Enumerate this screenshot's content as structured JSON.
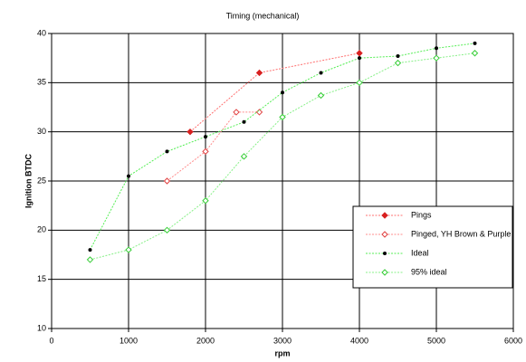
{
  "chart_data": {
    "type": "scatter",
    "title": "Timing (mechanical)",
    "x_label": "rpm",
    "y_label": "Ignition BTDC",
    "xlim": [
      0,
      6000
    ],
    "xticks": [
      0,
      1000,
      2000,
      3000,
      4000,
      5000,
      6000
    ],
    "ylim": [
      10,
      40
    ],
    "yticks": [
      10,
      15,
      20,
      25,
      30,
      35,
      40
    ],
    "grid": true,
    "legend": "lower right",
    "series": [
      {
        "name": "Pings",
        "color": "#ff7070",
        "marker": "diamond-filled",
        "marker_color": "#d82020",
        "x": [
          1800,
          2700,
          4000
        ],
        "values": [
          30,
          36,
          38
        ]
      },
      {
        "name": "Pinged, YH Brown & Purple",
        "color": "#ff8c8c",
        "marker": "diamond-open",
        "marker_color": "#e04040",
        "x": [
          1500,
          2000,
          2400,
          2700
        ],
        "values": [
          25,
          28,
          32,
          32
        ]
      },
      {
        "name": "Ideal",
        "color": "#55ee55",
        "marker": "dot",
        "marker_color": "#000000",
        "x": [
          500,
          1000,
          1500,
          2000,
          2500,
          3000,
          3500,
          4000,
          4500,
          5000,
          5500
        ],
        "values": [
          18,
          25.5,
          28,
          29.5,
          31,
          34,
          36,
          37.5,
          37.7,
          38.5,
          39
        ]
      },
      {
        "name": "95% ideal",
        "color": "#88f088",
        "marker": "diamond-open",
        "marker_color": "#33cc33",
        "x": [
          500,
          1000,
          1500,
          2000,
          2500,
          3000,
          3500,
          4000,
          4500,
          5000,
          5500
        ],
        "values": [
          17,
          18,
          20,
          23,
          27.5,
          31.5,
          33.7,
          35,
          37,
          37.5,
          38
        ]
      }
    ]
  }
}
